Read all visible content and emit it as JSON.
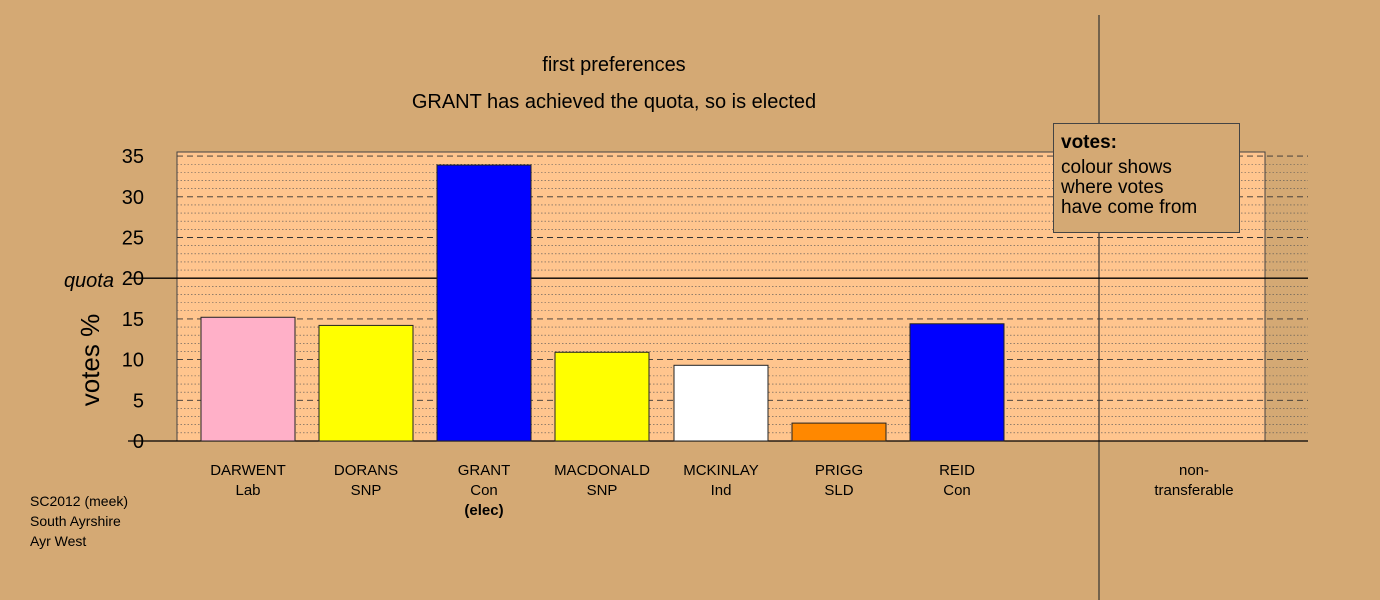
{
  "chart_data": {
    "type": "bar",
    "title": "first preferences",
    "subtitle": "GRANT has achieved the quota, so is elected",
    "ylabel": "votes %",
    "ylim": [
      0,
      35
    ],
    "yticks": [
      0,
      5,
      10,
      15,
      20,
      25,
      30,
      35
    ],
    "quota": {
      "label": "quota",
      "value": 20
    },
    "bars": [
      {
        "name": "DARWENT",
        "party": "Lab",
        "value": 15.2,
        "color": "#ffb0c8",
        "elected": ""
      },
      {
        "name": "DORANS",
        "party": "SNP",
        "value": 14.2,
        "color": "#ffff00",
        "elected": ""
      },
      {
        "name": "GRANT",
        "party": "Con",
        "value": 33.9,
        "color": "#0000ff",
        "elected": "(elec)"
      },
      {
        "name": "MACDONALD",
        "party": "SNP",
        "value": 10.9,
        "color": "#ffff00",
        "elected": ""
      },
      {
        "name": "MCKINLAY",
        "party": "Ind",
        "value": 9.3,
        "color": "#ffffff",
        "elected": ""
      },
      {
        "name": "PRIGG",
        "party": "SLD",
        "value": 2.2,
        "color": "#ff8800",
        "elected": ""
      },
      {
        "name": "REID",
        "party": "Con",
        "value": 14.4,
        "color": "#0000ff",
        "elected": ""
      }
    ],
    "nontransferable": {
      "label1": "non-",
      "label2": "transferable",
      "value": 0
    },
    "legend": {
      "title": "votes:",
      "lines": [
        "colour shows",
        "where votes",
        "have come from"
      ]
    },
    "grid": true
  },
  "footer": {
    "line1": "SC2012 (meek)",
    "line2": "South Ayrshire",
    "line3": "Ayr West"
  }
}
